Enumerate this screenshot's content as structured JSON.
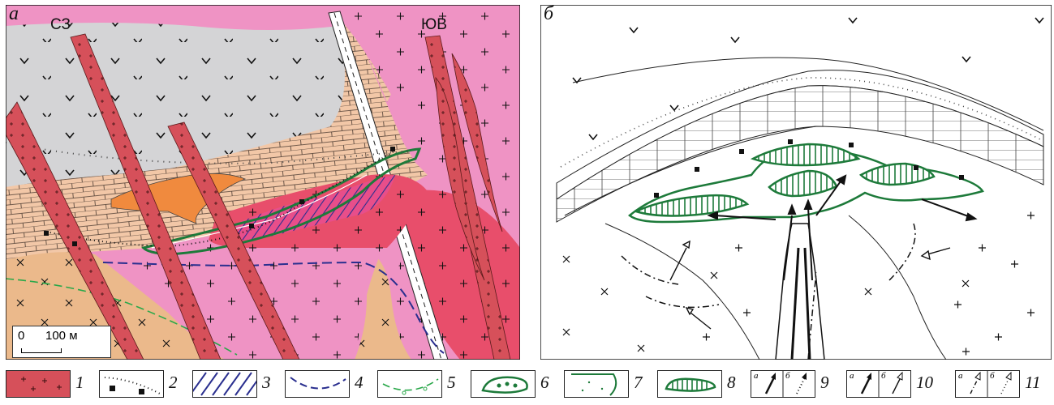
{
  "panel_a": {
    "label": "а",
    "dir_left": "СЗ",
    "dir_right": "ЮВ",
    "scale_start": "0",
    "scale_end": "100 м"
  },
  "panel_b": {
    "label": "б"
  },
  "legend": [
    {
      "num": "1"
    },
    {
      "num": "2"
    },
    {
      "num": "3"
    },
    {
      "num": "4"
    },
    {
      "num": "5"
    },
    {
      "num": "6"
    },
    {
      "num": "7"
    },
    {
      "num": "8"
    },
    {
      "num": "9",
      "sub_a": "а",
      "sub_b": "б"
    },
    {
      "num": "10",
      "sub_a": "а",
      "sub_b": "б"
    },
    {
      "num": "11",
      "sub_a": "а",
      "sub_b": "б"
    }
  ],
  "colors": {
    "dike_red": "#d6505a",
    "granite_pink": "#ef93c4",
    "granite_red": "#e84e6b",
    "limestone_beige": "#f2c7a7",
    "diorite_tan": "#ebb98b",
    "volcanic_gray": "#d4d4d6",
    "skarn_orange": "#f08a3e",
    "ore_green": "#1d7a3a",
    "fault_blue": "#2a2f8f"
  }
}
